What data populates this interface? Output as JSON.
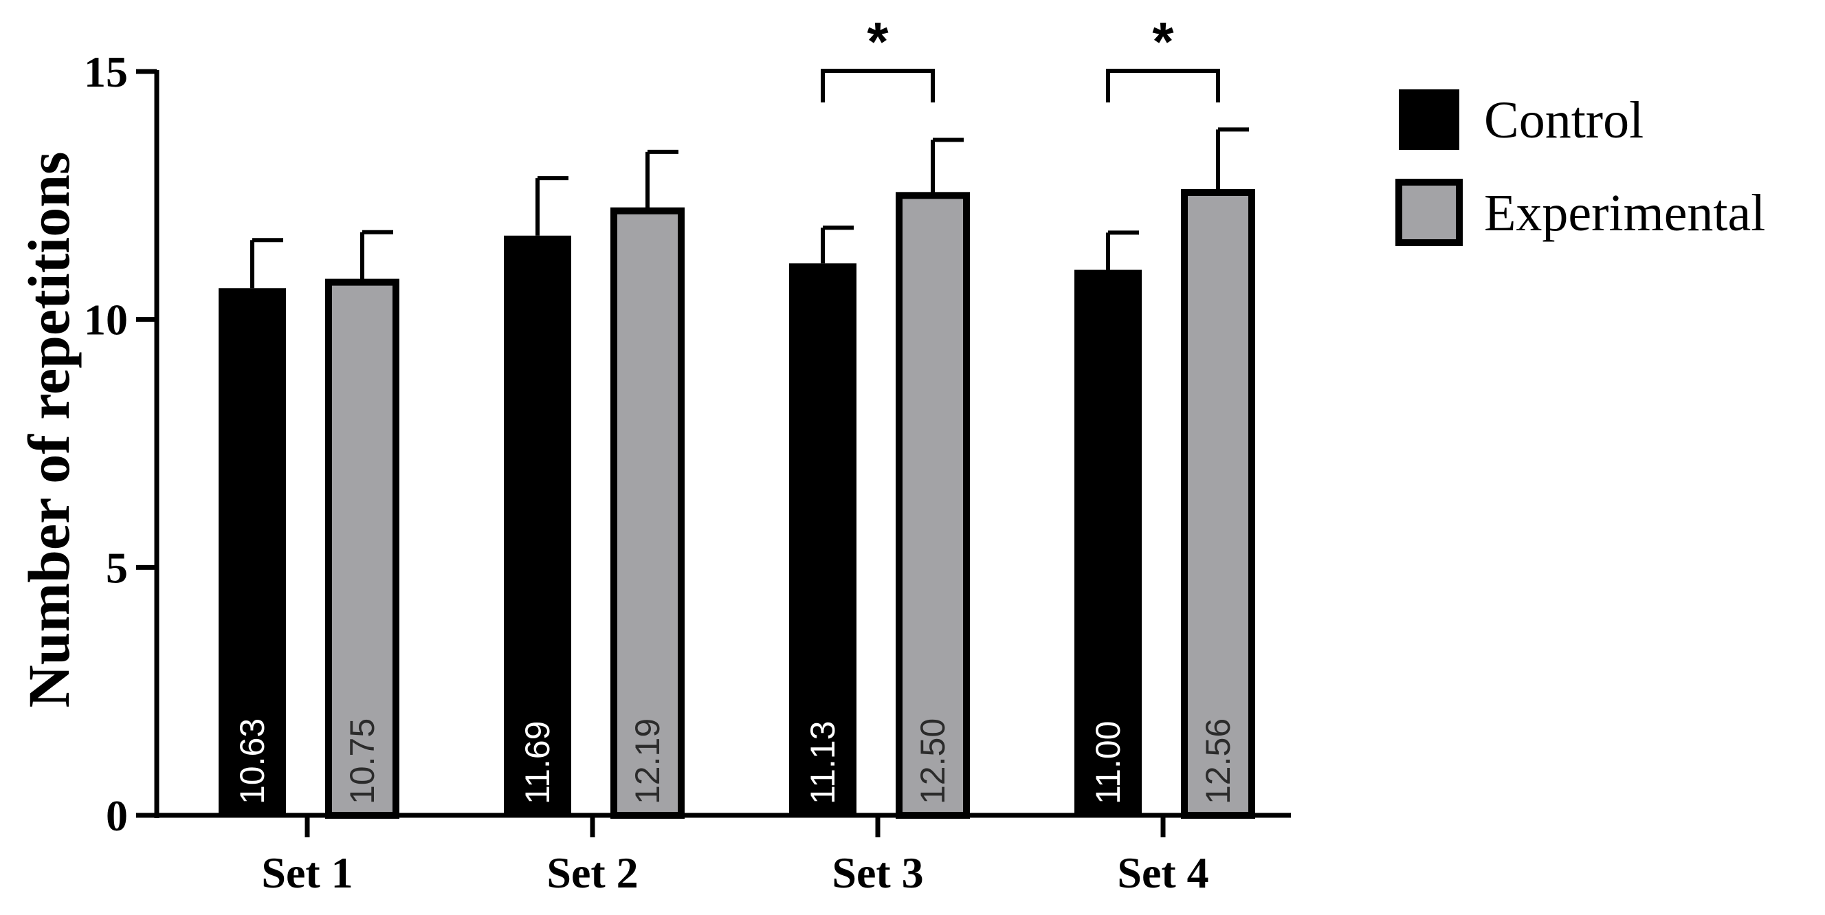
{
  "chart_data": {
    "type": "bar",
    "title": "",
    "xlabel": "",
    "ylabel": "Number of repetitions",
    "ylim": [
      0,
      15
    ],
    "yticks": [
      "0",
      "5",
      "10",
      "15"
    ],
    "categories": [
      "Set 1",
      "Set 2",
      "Set 3",
      "Set 4"
    ],
    "series": [
      {
        "name": "Control",
        "color": "#000000",
        "values": [
          10.63,
          11.69,
          11.13,
          11.0
        ],
        "labels": [
          "10.63",
          "11.69",
          "11.13",
          "11.00"
        ],
        "error": [
          0.97,
          1.16,
          0.72,
          0.75
        ]
      },
      {
        "name": "Experimental",
        "color": "#a3a3a6",
        "values": [
          10.75,
          12.19,
          12.5,
          12.56
        ],
        "labels": [
          "10.75",
          "12.19",
          "12.50",
          "12.56"
        ],
        "error": [
          1.01,
          1.19,
          1.12,
          1.27
        ]
      }
    ],
    "significance": [
      {
        "category": "Set 3",
        "label": "*"
      },
      {
        "category": "Set 4",
        "label": "*"
      }
    ],
    "legend_position": "top-right",
    "grid": false
  }
}
